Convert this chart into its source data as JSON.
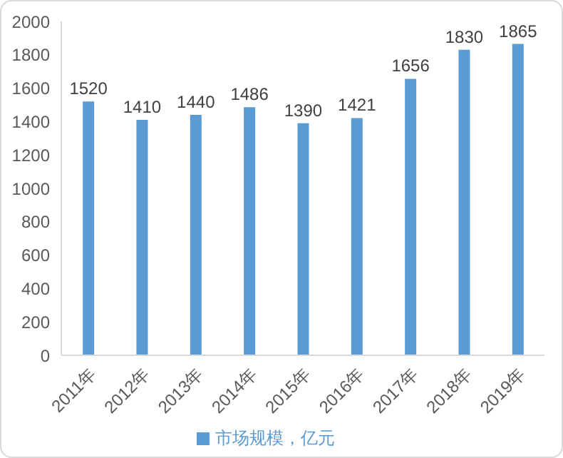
{
  "chart_data": {
    "type": "bar",
    "categories": [
      "2011年",
      "2012年",
      "2013年",
      "2014年",
      "2015年",
      "2016年",
      "2017年",
      "2018年",
      "2019年"
    ],
    "series": [
      {
        "name": "市场规模，亿元",
        "color": "#5b9bd5",
        "values": [
          1520,
          1410,
          1440,
          1486,
          1390,
          1421,
          1656,
          1830,
          1865
        ]
      }
    ],
    "ylim": [
      0,
      2000
    ],
    "yticks": [
      0,
      200,
      400,
      600,
      800,
      1000,
      1200,
      1400,
      1600,
      1800,
      2000
    ],
    "data_labels": true,
    "legend": "bottom"
  }
}
